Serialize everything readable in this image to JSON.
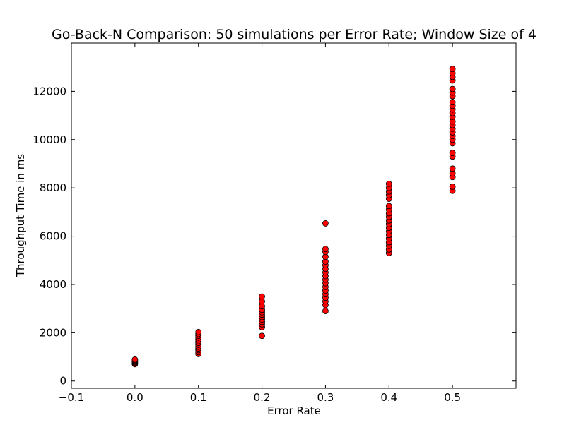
{
  "chart_data": {
    "type": "scatter",
    "title": "Go-Back-N Comparison: 50 simulations per Error Rate; Window Size of 4",
    "xlabel": "Error Rate",
    "ylabel": "Throughput Time in ms",
    "xlim": [
      -0.1,
      0.6
    ],
    "ylim": [
      -300,
      14000
    ],
    "xticks": [
      -0.1,
      0.0,
      0.1,
      0.2,
      0.3,
      0.4,
      0.5
    ],
    "xtick_labels": [
      "−0.1",
      "0.0",
      "0.1",
      "0.2",
      "0.3",
      "0.4",
      "0.5"
    ],
    "yticks": [
      0,
      2000,
      4000,
      6000,
      8000,
      10000,
      12000
    ],
    "ytick_labels": [
      "0",
      "2000",
      "4000",
      "6000",
      "8000",
      "10000",
      "12000"
    ],
    "grid": false,
    "marker_color": "#ff0000",
    "marker_edge_color": "#000000",
    "series": [
      {
        "points": [
          [
            0.0,
            700
          ],
          [
            0.0,
            740
          ],
          [
            0.0,
            770
          ],
          [
            0.0,
            800
          ],
          [
            0.0,
            830
          ],
          [
            0.0,
            860
          ],
          [
            0.0,
            890
          ],
          [
            0.1,
            1120
          ],
          [
            0.1,
            1200
          ],
          [
            0.1,
            1280
          ],
          [
            0.1,
            1350
          ],
          [
            0.1,
            1420
          ],
          [
            0.1,
            1500
          ],
          [
            0.1,
            1580
          ],
          [
            0.1,
            1650
          ],
          [
            0.1,
            1720
          ],
          [
            0.1,
            1800
          ],
          [
            0.1,
            1880
          ],
          [
            0.1,
            1950
          ],
          [
            0.1,
            2030
          ],
          [
            0.2,
            1870
          ],
          [
            0.2,
            2230
          ],
          [
            0.2,
            2350
          ],
          [
            0.2,
            2450
          ],
          [
            0.2,
            2550
          ],
          [
            0.2,
            2650
          ],
          [
            0.2,
            2750
          ],
          [
            0.2,
            2850
          ],
          [
            0.2,
            2950
          ],
          [
            0.2,
            3100
          ],
          [
            0.2,
            3300
          ],
          [
            0.2,
            3500
          ],
          [
            0.3,
            2900
          ],
          [
            0.3,
            3150
          ],
          [
            0.3,
            3300
          ],
          [
            0.3,
            3450
          ],
          [
            0.3,
            3600
          ],
          [
            0.3,
            3750
          ],
          [
            0.3,
            3900
          ],
          [
            0.3,
            4050
          ],
          [
            0.3,
            4200
          ],
          [
            0.3,
            4350
          ],
          [
            0.3,
            4500
          ],
          [
            0.3,
            4650
          ],
          [
            0.3,
            4800
          ],
          [
            0.3,
            4950
          ],
          [
            0.3,
            5150
          ],
          [
            0.3,
            5350
          ],
          [
            0.3,
            5470
          ],
          [
            0.3,
            6530
          ],
          [
            0.4,
            5300
          ],
          [
            0.4,
            5450
          ],
          [
            0.4,
            5600
          ],
          [
            0.4,
            5750
          ],
          [
            0.4,
            5900
          ],
          [
            0.4,
            6050
          ],
          [
            0.4,
            6200
          ],
          [
            0.4,
            6350
          ],
          [
            0.4,
            6500
          ],
          [
            0.4,
            6650
          ],
          [
            0.4,
            6800
          ],
          [
            0.4,
            6950
          ],
          [
            0.4,
            7100
          ],
          [
            0.4,
            7250
          ],
          [
            0.4,
            7550
          ],
          [
            0.4,
            7700
          ],
          [
            0.4,
            7850
          ],
          [
            0.4,
            8000
          ],
          [
            0.4,
            8170
          ],
          [
            0.5,
            7880
          ],
          [
            0.5,
            8050
          ],
          [
            0.5,
            8450
          ],
          [
            0.5,
            8600
          ],
          [
            0.5,
            8800
          ],
          [
            0.5,
            9300
          ],
          [
            0.5,
            9450
          ],
          [
            0.5,
            9850
          ],
          [
            0.5,
            10000
          ],
          [
            0.5,
            10150
          ],
          [
            0.5,
            10300
          ],
          [
            0.5,
            10450
          ],
          [
            0.5,
            10600
          ],
          [
            0.5,
            10750
          ],
          [
            0.5,
            10950
          ],
          [
            0.5,
            11100
          ],
          [
            0.5,
            11250
          ],
          [
            0.5,
            11400
          ],
          [
            0.5,
            11550
          ],
          [
            0.5,
            11800
          ],
          [
            0.5,
            11950
          ],
          [
            0.5,
            12100
          ],
          [
            0.5,
            12450
          ],
          [
            0.5,
            12600
          ],
          [
            0.5,
            12750
          ],
          [
            0.5,
            12930
          ]
        ]
      }
    ]
  }
}
